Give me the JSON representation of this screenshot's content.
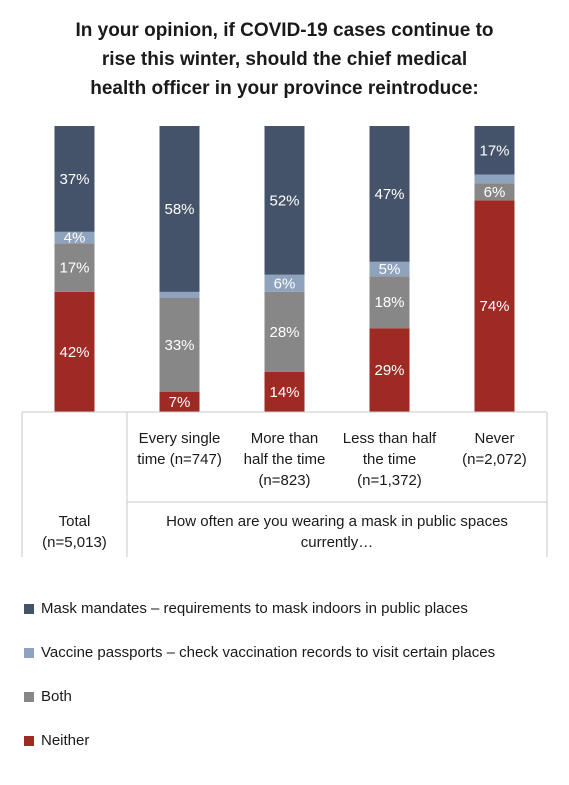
{
  "title_lines": [
    "In your opinion, if COVID-19 cases continue to",
    "rise this winter, should the chief medical",
    "health officer in your province reintroduce:"
  ],
  "chart_data": {
    "type": "bar",
    "stacked": true,
    "categories": [
      [
        "Total",
        "(n=5,013)"
      ],
      [
        "Every single",
        "time (n=747)"
      ],
      [
        "More than",
        "half the time",
        "(n=823)"
      ],
      [
        "Less than half",
        "the time",
        "(n=1,372)"
      ],
      [
        "Never",
        "(n=2,072)"
      ]
    ],
    "group_label": [
      "How often are you wearing a mask in public spaces",
      "currently…"
    ],
    "ylim": [
      0,
      100
    ],
    "series": [
      {
        "name": "Neither",
        "color": "#9e2a24",
        "values": [
          42,
          7,
          14,
          29,
          74
        ],
        "labels": [
          "42%",
          "7%",
          "14%",
          "29%",
          "74%"
        ]
      },
      {
        "name": "Both",
        "color": "#878787",
        "values": [
          17,
          33,
          28,
          18,
          6
        ],
        "labels": [
          "17%",
          "33%",
          "28%",
          "18%",
          "6%"
        ]
      },
      {
        "name": "Vaccine passports – check vaccination records to visit certain places",
        "color": "#8fa3be",
        "values": [
          4,
          2,
          6,
          5,
          3
        ],
        "labels": [
          "4%",
          "",
          "6%",
          "5%",
          ""
        ]
      },
      {
        "name": "Mask mandates – requirements to mask indoors in public places",
        "color": "#45536a",
        "values": [
          37,
          58,
          52,
          47,
          17
        ],
        "labels": [
          "37%",
          "58%",
          "52%",
          "47%",
          "17%"
        ]
      }
    ],
    "legend_order": [
      3,
      2,
      1,
      0
    ],
    "legend_position": "bottom",
    "grid": false
  }
}
